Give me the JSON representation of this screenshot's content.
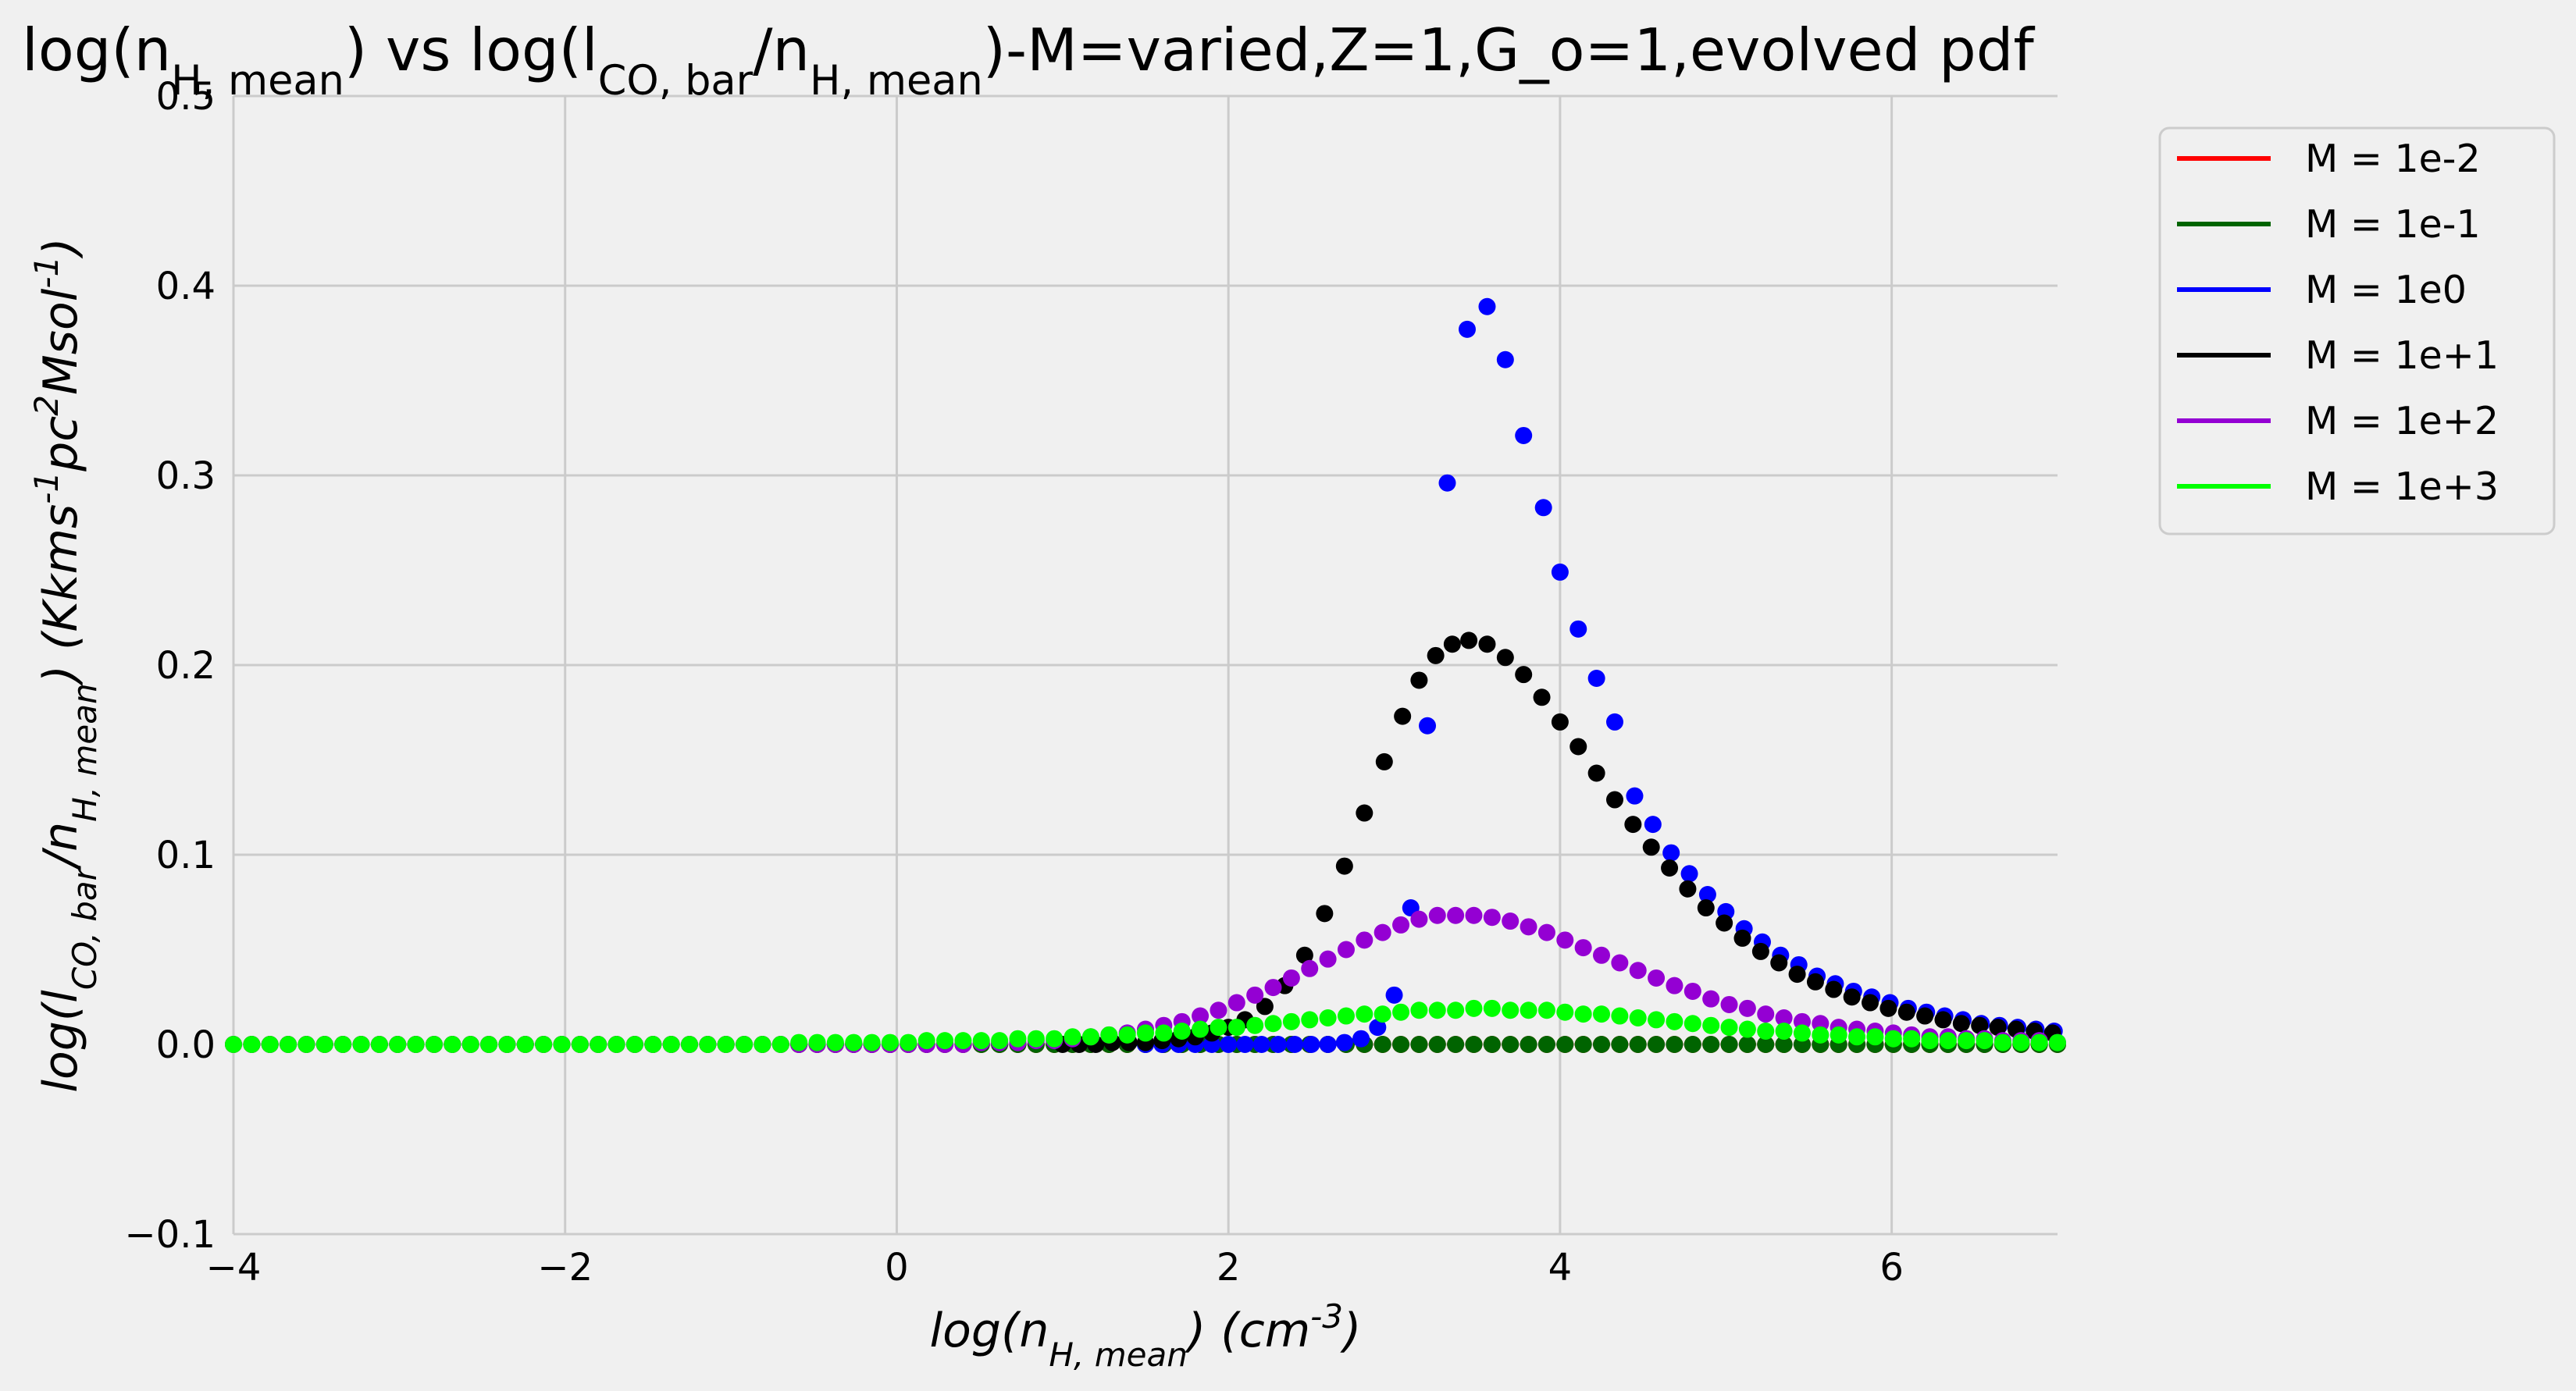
{
  "chart_data": {
    "type": "scatter",
    "title": "log(n_{H, mean}) vs log(l_{CO, bar}/n_{H, mean})-M=varied,Z=1,G_o=1,evolved pdf",
    "xlabel": "log(n_{H, mean}) (cm^{-3})",
    "ylabel": "log(l_{CO, bar}/n_{H, mean}) (Kkms^{-1}pc^{2}Msol^{-1})",
    "xlim": [
      -4,
      7
    ],
    "ylim": [
      -0.1,
      0.5
    ],
    "xticks": [
      -4,
      -2,
      0,
      2,
      4,
      6
    ],
    "xtick_labels": [
      "−4",
      "−2",
      "0",
      "2",
      "4",
      "6"
    ],
    "yticks": [
      -0.1,
      0.0,
      0.1,
      0.2,
      0.3,
      0.4,
      0.5
    ],
    "ytick_labels": [
      "−0.1",
      "0.0",
      "0.1",
      "0.2",
      "0.3",
      "0.4",
      "0.5"
    ],
    "grid": true,
    "legend_position": "outside-top-right",
    "x": [
      -4.0,
      -3.89,
      -3.78,
      -3.67,
      -3.56,
      -3.45,
      -3.34,
      -3.23,
      -3.12,
      -3.01,
      -2.9,
      -2.79,
      -2.68,
      -2.57,
      -2.46,
      -2.35,
      -2.24,
      -2.13,
      -2.02,
      -1.91,
      -1.8,
      -1.69,
      -1.58,
      -1.47,
      -1.36,
      -1.25,
      -1.14,
      -1.03,
      -0.92,
      -0.81,
      -0.7,
      -0.59,
      -0.48,
      -0.37,
      -0.26,
      -0.15,
      -0.04,
      0.07,
      0.18,
      0.29,
      0.4,
      0.51,
      0.62,
      0.73,
      0.84,
      0.95,
      1.06,
      1.17,
      1.28,
      1.39,
      1.5,
      1.61,
      1.72,
      1.83,
      1.94,
      2.05,
      2.16,
      2.27,
      2.38,
      2.49,
      2.6,
      2.71,
      2.82,
      2.93,
      3.04,
      3.15,
      3.26,
      3.37,
      3.48,
      3.59,
      3.7,
      3.81,
      3.92,
      4.03,
      4.14,
      4.25,
      4.36,
      4.47,
      4.58,
      4.69,
      4.8,
      4.91,
      5.02,
      5.13,
      5.24,
      5.35,
      5.46,
      5.57,
      5.68,
      5.79,
      5.9,
      6.01,
      6.12,
      6.23,
      6.34,
      6.45,
      6.56,
      6.67,
      6.78,
      6.89,
      7.0
    ],
    "series": [
      {
        "name": "M = 1e-2",
        "color": "#ff0000",
        "values": [
          0,
          0,
          0,
          0,
          0,
          0,
          0,
          0,
          0,
          0,
          0,
          0,
          0,
          0,
          0,
          0,
          0,
          0,
          0,
          0,
          0,
          0,
          0,
          0,
          0,
          0,
          0,
          0,
          0,
          0,
          0,
          0,
          0,
          0,
          0,
          0,
          0,
          0,
          0,
          0,
          0,
          0,
          0,
          0,
          0,
          0,
          0,
          0,
          0,
          0,
          0,
          0,
          0,
          0,
          0,
          0,
          0,
          0,
          0,
          0,
          0,
          0,
          0,
          0,
          0,
          0,
          0,
          0,
          0,
          0,
          0,
          0,
          0,
          0,
          0,
          0,
          0,
          0,
          0,
          0,
          0,
          0,
          0,
          0,
          0,
          0,
          0,
          0,
          0,
          0,
          0,
          0,
          0,
          0,
          0,
          0,
          0,
          0,
          0,
          0,
          0
        ]
      },
      {
        "name": "M = 1e-1",
        "color": "#006400",
        "values": [
          0,
          0,
          0,
          0,
          0,
          0,
          0,
          0,
          0,
          0,
          0,
          0,
          0,
          0,
          0,
          0,
          0,
          0,
          0,
          0,
          0,
          0,
          0,
          0,
          0,
          0,
          0,
          0,
          0,
          0,
          0,
          0,
          0,
          0,
          0,
          0,
          0,
          0,
          0,
          0,
          0,
          0,
          0,
          0,
          0,
          0,
          0,
          0,
          0,
          0,
          0,
          0,
          0,
          0,
          0,
          0,
          0,
          0,
          0,
          0,
          0,
          0,
          0,
          0,
          0,
          0,
          0,
          0,
          0,
          0,
          0,
          0,
          0,
          0,
          0,
          0,
          0,
          0,
          0,
          0,
          0,
          0,
          0,
          0,
          0,
          0,
          0,
          0,
          0,
          0,
          0,
          0,
          0,
          0,
          0,
          0,
          0,
          0,
          0,
          0,
          0
        ]
      },
      {
        "name": "M = 1e0",
        "color": "#0000ff",
        "x": [
          1.5,
          1.6,
          1.7,
          1.8,
          1.9,
          2.0,
          2.1,
          2.2,
          2.3,
          2.4,
          2.5,
          2.6,
          2.7,
          2.8,
          2.9,
          3.0,
          3.1,
          3.2,
          3.32,
          3.44,
          3.56,
          3.67,
          3.78,
          3.9,
          4.0,
          4.11,
          4.22,
          4.33,
          4.45,
          4.56,
          4.67,
          4.78,
          4.89,
          5.0,
          5.11,
          5.22,
          5.33,
          5.44,
          5.55,
          5.66,
          5.77,
          5.88,
          5.99,
          6.1,
          6.21,
          6.32,
          6.43,
          6.54,
          6.65,
          6.76,
          6.87,
          6.98
        ],
        "values": [
          0,
          0,
          0,
          0,
          0,
          0,
          0,
          0,
          0,
          0,
          0,
          0,
          0.001,
          0.003,
          0.009,
          0.026,
          0.072,
          0.168,
          0.296,
          0.377,
          0.389,
          0.361,
          0.321,
          0.283,
          0.249,
          0.219,
          0.193,
          0.17,
          0.131,
          0.116,
          0.101,
          0.09,
          0.079,
          0.07,
          0.061,
          0.054,
          0.047,
          0.042,
          0.036,
          0.032,
          0.028,
          0.025,
          0.022,
          0.019,
          0.017,
          0.015,
          0.013,
          0.011,
          0.01,
          0.009,
          0.008,
          0.007
        ]
      },
      {
        "name": "M = 1e+1",
        "color": "#000000",
        "x": [
          1.0,
          1.1,
          1.2,
          1.3,
          1.4,
          1.5,
          1.6,
          1.7,
          1.8,
          1.9,
          2.0,
          2.1,
          2.22,
          2.34,
          2.46,
          2.58,
          2.7,
          2.82,
          2.94,
          3.05,
          3.15,
          3.25,
          3.35,
          3.45,
          3.56,
          3.67,
          3.78,
          3.89,
          4.0,
          4.11,
          4.22,
          4.33,
          4.44,
          4.55,
          4.66,
          4.77,
          4.88,
          4.99,
          5.1,
          5.21,
          5.32,
          5.43,
          5.54,
          5.65,
          5.76,
          5.87,
          5.98,
          6.09,
          6.2,
          6.31,
          6.42,
          6.53,
          6.64,
          6.75,
          6.86,
          6.97
        ],
        "values": [
          0,
          0,
          0,
          0.001,
          0.001,
          0.001,
          0.002,
          0.003,
          0.004,
          0.006,
          0.009,
          0.013,
          0.02,
          0.031,
          0.047,
          0.069,
          0.094,
          0.122,
          0.149,
          0.173,
          0.192,
          0.205,
          0.211,
          0.213,
          0.211,
          0.204,
          0.195,
          0.183,
          0.17,
          0.157,
          0.143,
          0.129,
          0.116,
          0.104,
          0.093,
          0.082,
          0.072,
          0.064,
          0.056,
          0.049,
          0.043,
          0.037,
          0.033,
          0.029,
          0.025,
          0.022,
          0.019,
          0.017,
          0.015,
          0.013,
          0.011,
          0.01,
          0.009,
          0.008,
          0.007,
          0.006
        ]
      },
      {
        "name": "M = 1e+2",
        "color": "#9400d3",
        "values": [
          0,
          0,
          0,
          0,
          0,
          0,
          0,
          0,
          0,
          0,
          0,
          0,
          0,
          0,
          0,
          0,
          0,
          0,
          0,
          0,
          0,
          0,
          0,
          0,
          0,
          0,
          0,
          0,
          0,
          0,
          0,
          0,
          0,
          0,
          0,
          0,
          0,
          0,
          0,
          0,
          0,
          0.001,
          0.001,
          0.001,
          0.002,
          0.002,
          0.003,
          0.004,
          0.005,
          0.006,
          0.008,
          0.01,
          0.012,
          0.015,
          0.018,
          0.022,
          0.026,
          0.03,
          0.035,
          0.04,
          0.045,
          0.05,
          0.055,
          0.059,
          0.063,
          0.066,
          0.068,
          0.068,
          0.068,
          0.067,
          0.065,
          0.062,
          0.059,
          0.055,
          0.051,
          0.047,
          0.043,
          0.039,
          0.035,
          0.031,
          0.028,
          0.024,
          0.021,
          0.019,
          0.016,
          0.014,
          0.012,
          0.011,
          0.009,
          0.008,
          0.007,
          0.006,
          0.005,
          0.004,
          0.004,
          0.003,
          0.003,
          0.002,
          0.002,
          0.002,
          0.001
        ]
      },
      {
        "name": "M = 1e+3",
        "color": "#00ff00",
        "values": [
          0,
          0,
          0,
          0,
          0,
          0,
          0,
          0,
          0,
          0,
          0,
          0,
          0,
          0,
          0,
          0,
          0,
          0,
          0,
          0,
          0,
          0,
          0,
          0,
          0,
          0,
          0,
          0,
          0,
          0,
          0,
          0.001,
          0.001,
          0.001,
          0.001,
          0.001,
          0.001,
          0.001,
          0.002,
          0.002,
          0.002,
          0.002,
          0.002,
          0.003,
          0.003,
          0.003,
          0.004,
          0.004,
          0.005,
          0.005,
          0.006,
          0.006,
          0.007,
          0.008,
          0.009,
          0.009,
          0.01,
          0.011,
          0.012,
          0.013,
          0.014,
          0.015,
          0.016,
          0.016,
          0.017,
          0.018,
          0.018,
          0.018,
          0.019,
          0.019,
          0.018,
          0.018,
          0.018,
          0.017,
          0.016,
          0.016,
          0.015,
          0.014,
          0.013,
          0.012,
          0.011,
          0.01,
          0.009,
          0.008,
          0.007,
          0.007,
          0.006,
          0.005,
          0.005,
          0.004,
          0.004,
          0.003,
          0.003,
          0.002,
          0.002,
          0.002,
          0.002,
          0.001,
          0.001,
          0.001,
          0.001
        ]
      }
    ]
  }
}
